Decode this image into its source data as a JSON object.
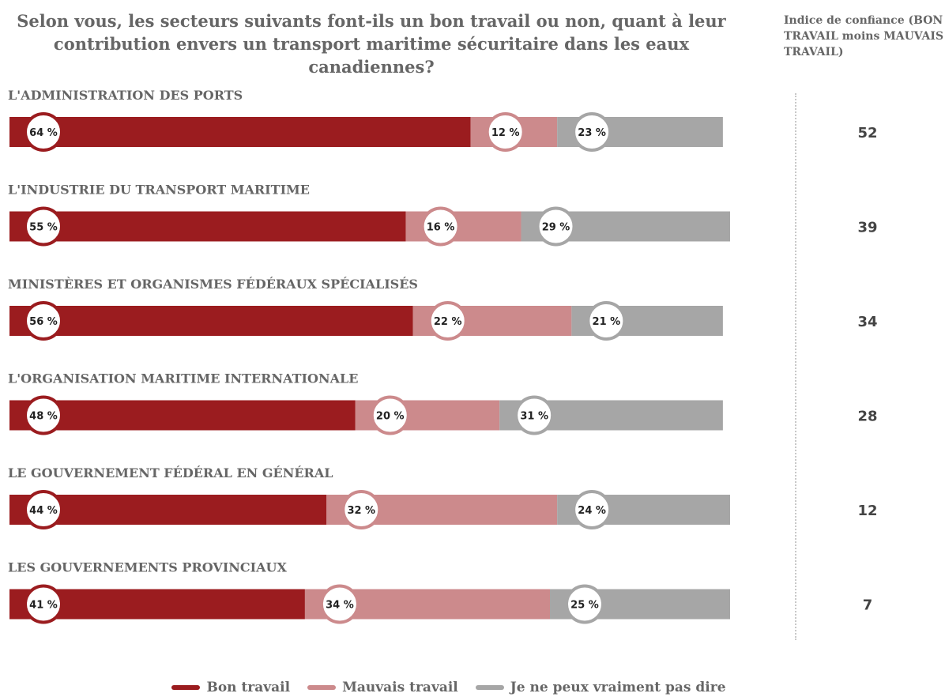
{
  "chart_data": {
    "type": "bar",
    "stacked": true,
    "orientation": "horizontal",
    "title": "Selon vous, les secteurs suivants font-ils un bon travail ou non, quant à leur contribution envers un transport maritime sécuritaire dans les eaux canadiennes?",
    "index_header": "Indice de confiance (BON TRAVAIL moins MAUVAIS TRAVAIL)",
    "categories": [
      "L'ADMINISTRATION DES PORTS",
      "L'INDUSTRIE DU TRANSPORT MARITIME",
      "MINISTÈRES ET ORGANISMES FÉDÉRAUX SPÉCIALISÉS",
      "L'ORGANISATION MARITIME INTERNATIONALE",
      "LE GOUVERNEMENT FÉDÉRAL EN GÉNÉRAL",
      "LES GOUVERNEMENTS PROVINCIAUX"
    ],
    "series": [
      {
        "name": "Bon travail",
        "color": "#9b1c1f",
        "values": [
          64,
          55,
          56,
          48,
          44,
          41
        ]
      },
      {
        "name": "Mauvais travail",
        "color": "#cc8a8c",
        "values": [
          12,
          16,
          22,
          20,
          32,
          34
        ]
      },
      {
        "name": "Je ne peux vraiment pas dire",
        "color": "#a6a6a6",
        "values": [
          23,
          29,
          21,
          31,
          24,
          25
        ]
      }
    ],
    "confidence_index": [
      52,
      39,
      34,
      28,
      12,
      7
    ],
    "value_suffix": " %",
    "xlim": [
      0,
      100
    ],
    "legend_position": "bottom",
    "grid": false
  }
}
